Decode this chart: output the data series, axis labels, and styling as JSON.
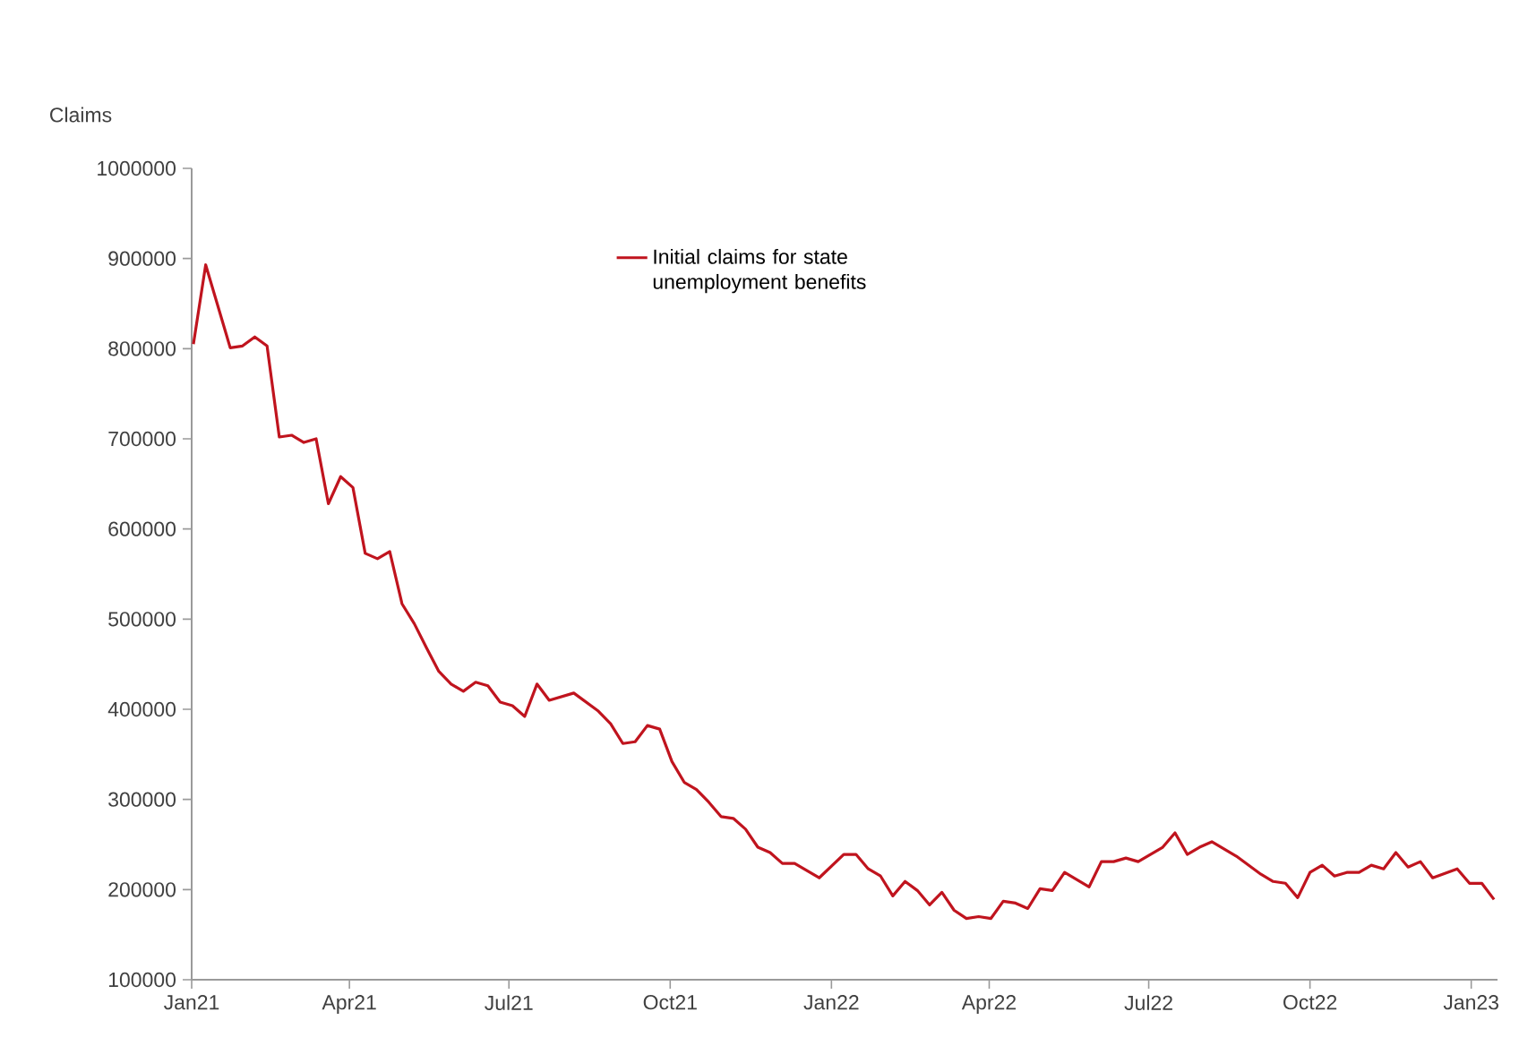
{
  "chart_data": {
    "type": "line",
    "ylabel": "Claims",
    "legend": "top",
    "xlim": [
      "2021-01-01",
      "2023-01-16"
    ],
    "xticks": [
      {
        "value": "2021-01-01",
        "label": "Jan21"
      },
      {
        "value": "2021-04-01",
        "label": "Apr21"
      },
      {
        "value": "2021-07-01",
        "label": "Jul21"
      },
      {
        "value": "2021-10-01",
        "label": "Oct21"
      },
      {
        "value": "2022-01-01",
        "label": "Jan22"
      },
      {
        "value": "2022-04-01",
        "label": "Apr22"
      },
      {
        "value": "2022-07-01",
        "label": "Jul22"
      },
      {
        "value": "2022-10-01",
        "label": "Oct22"
      },
      {
        "value": "2023-01-01",
        "label": "Jan23"
      }
    ],
    "ylim": [
      100000,
      1000000
    ],
    "yticks": [
      100000,
      200000,
      300000,
      400000,
      500000,
      600000,
      700000,
      800000,
      900000,
      1000000
    ],
    "x": [
      "2021-01-02",
      "2021-01-09",
      "2021-01-23",
      "2021-01-30",
      "2021-02-06",
      "2021-02-13",
      "2021-02-20",
      "2021-02-27",
      "2021-03-06",
      "2021-03-13",
      "2021-03-20",
      "2021-03-27",
      "2021-04-03",
      "2021-04-10",
      "2021-04-17",
      "2021-04-24",
      "2021-05-01",
      "2021-05-08",
      "2021-05-15",
      "2021-05-22",
      "2021-05-29",
      "2021-06-05",
      "2021-06-12",
      "2021-06-19",
      "2021-06-26",
      "2021-07-03",
      "2021-07-10",
      "2021-07-17",
      "2021-07-24",
      "2021-08-07",
      "2021-08-21",
      "2021-08-28",
      "2021-09-04",
      "2021-09-11",
      "2021-09-18",
      "2021-09-25",
      "2021-10-02",
      "2021-10-09",
      "2021-10-16",
      "2021-10-23",
      "2021-10-30",
      "2021-11-06",
      "2021-11-13",
      "2021-11-20",
      "2021-11-27",
      "2021-12-04",
      "2021-12-11",
      "2021-12-25",
      "2022-01-08",
      "2022-01-15",
      "2022-01-22",
      "2022-01-29",
      "2022-02-05",
      "2022-02-12",
      "2022-02-19",
      "2022-02-26",
      "2022-03-05",
      "2022-03-12",
      "2022-03-19",
      "2022-03-26",
      "2022-04-02",
      "2022-04-09",
      "2022-04-16",
      "2022-04-23",
      "2022-04-30",
      "2022-05-07",
      "2022-05-14",
      "2022-05-28",
      "2022-06-04",
      "2022-06-11",
      "2022-06-18",
      "2022-06-25",
      "2022-07-02",
      "2022-07-09",
      "2022-07-16",
      "2022-07-23",
      "2022-07-30",
      "2022-08-06",
      "2022-08-13",
      "2022-08-20",
      "2022-08-27",
      "2022-09-03",
      "2022-09-10",
      "2022-09-17",
      "2022-09-24",
      "2022-10-01",
      "2022-10-08",
      "2022-10-15",
      "2022-10-22",
      "2022-10-29",
      "2022-11-05",
      "2022-11-12",
      "2022-11-19",
      "2022-11-26",
      "2022-12-03",
      "2022-12-10",
      "2022-12-24",
      "2022-12-31",
      "2023-01-07",
      "2023-01-14"
    ],
    "series": [
      {
        "name": "Initial claims for state unemployment benefits",
        "color": "#c0141e",
        "values": [
          805000,
          893000,
          801000,
          803000,
          813000,
          803000,
          702000,
          704000,
          696000,
          700000,
          628000,
          658000,
          646000,
          573000,
          567000,
          575000,
          517000,
          495000,
          468000,
          442000,
          428000,
          420000,
          430000,
          426000,
          408000,
          404000,
          392000,
          428000,
          410000,
          418000,
          398000,
          384000,
          362000,
          364000,
          382000,
          378000,
          342000,
          319000,
          311000,
          297000,
          281000,
          279000,
          267000,
          247000,
          241000,
          229000,
          229000,
          213000,
          239000,
          239000,
          223000,
          215000,
          193000,
          209000,
          199000,
          183000,
          197000,
          177000,
          168000,
          170000,
          168000,
          187000,
          185000,
          179000,
          201000,
          199000,
          219000,
          203000,
          231000,
          231000,
          235000,
          231000,
          239000,
          247000,
          263000,
          239000,
          247000,
          253000,
          245000,
          237000,
          227000,
          217000,
          209000,
          207000,
          191000,
          219000,
          227000,
          215000,
          219000,
          219000,
          227000,
          223000,
          241000,
          225000,
          231000,
          213000,
          223000,
          207000,
          207000,
          189000
        ]
      }
    ]
  }
}
